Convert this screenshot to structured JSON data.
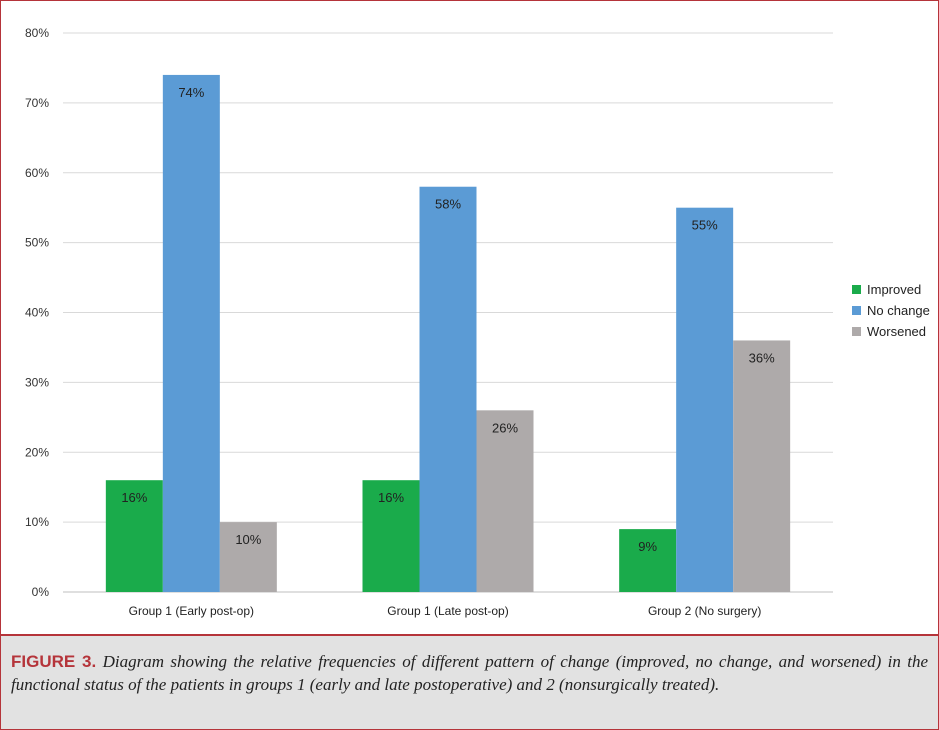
{
  "chart_data": {
    "type": "bar",
    "categories": [
      "Group 1 (Early post-op)",
      "Group 1 (Late post-op)",
      "Group 2 (No surgery)"
    ],
    "series": [
      {
        "name": "Improved",
        "values": [
          16,
          16,
          9
        ],
        "labels": [
          "16%",
          "16%",
          "9%"
        ],
        "color": "#1aab4b"
      },
      {
        "name": "No change",
        "values": [
          74,
          58,
          55
        ],
        "labels": [
          "74%",
          "58%",
          "55%"
        ],
        "color": "#5b9bd5"
      },
      {
        "name": "Worsened",
        "values": [
          10,
          26,
          36
        ],
        "labels": [
          "10%",
          "26%",
          "36%"
        ],
        "color": "#aeaaaa"
      }
    ],
    "yticks": [
      "0%",
      "10%",
      "20%",
      "30%",
      "40%",
      "50%",
      "60%",
      "70%",
      "80%"
    ],
    "ylim": [
      0,
      80
    ],
    "grid": true,
    "legend_position": "right"
  },
  "caption": {
    "label": "FIGURE 3.",
    "text": "Diagram showing the relative frequencies of different pattern of change (improved, no change, and worsened) in the functional status of the patients in groups 1 (early and late postoperative) and 2 (nonsurgically treated)."
  },
  "colors": {
    "frame_border": "#b5343a",
    "caption_background": "#e2e2e2"
  }
}
